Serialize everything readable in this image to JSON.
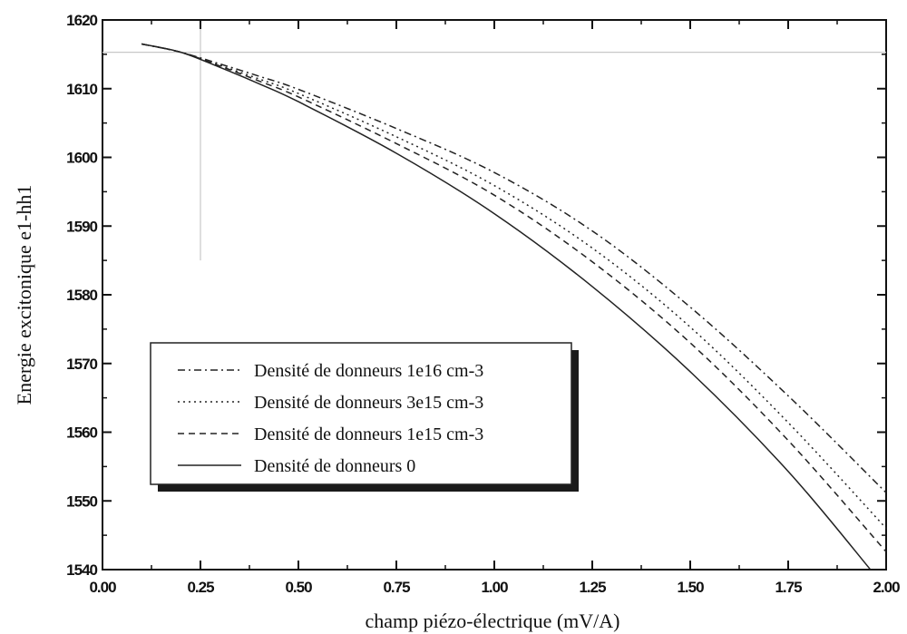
{
  "chart_data": {
    "type": "line",
    "title": "",
    "xlabel": "champ piézo-électrique (mV/A)",
    "ylabel": "Energie excitonique e1-hh1",
    "xlim": [
      0.0,
      2.0
    ],
    "ylim": [
      1540,
      1620
    ],
    "x_ticks": [
      "0.00",
      "0.25",
      "0.50",
      "0.75",
      "1.00",
      "1.25",
      "1.50",
      "1.75",
      "2.00"
    ],
    "y_ticks": [
      "1540",
      "1550",
      "1560",
      "1570",
      "1580",
      "1590",
      "1600",
      "1610",
      "1620"
    ],
    "grid": false,
    "legend_position": "lower-left",
    "reference_lines": {
      "y": 1615.3,
      "x": 0.25
    },
    "series": [
      {
        "name": "Densité de donneurs 1e16 cm-3",
        "dash": "dash-dot",
        "x": [
          0.1,
          0.2,
          0.3,
          0.4,
          0.5,
          0.75,
          1.0,
          1.25,
          1.5,
          1.75,
          2.0
        ],
        "y": [
          1616.5,
          1615.3,
          1613.6,
          1611.8,
          1609.9,
          1604.2,
          1597.8,
          1589.3,
          1578.2,
          1565.3,
          1551.2
        ]
      },
      {
        "name": "Densité de donneurs 3e15 cm-3",
        "dash": "dotted",
        "x": [
          0.1,
          0.2,
          0.3,
          0.4,
          0.5,
          0.75,
          1.0,
          1.25,
          1.5,
          1.75,
          2.0
        ],
        "y": [
          1616.5,
          1615.3,
          1613.4,
          1611.4,
          1609.3,
          1603.0,
          1595.9,
          1586.8,
          1575.3,
          1561.4,
          1546.0
        ]
      },
      {
        "name": "Densité de donneurs 1e15 cm-3",
        "dash": "dashed",
        "x": [
          0.1,
          0.2,
          0.3,
          0.4,
          0.5,
          0.75,
          1.0,
          1.25,
          1.5,
          1.75,
          2.0
        ],
        "y": [
          1616.5,
          1615.3,
          1613.3,
          1611.1,
          1608.8,
          1602.0,
          1594.5,
          1584.8,
          1573.0,
          1558.8,
          1542.6
        ]
      },
      {
        "name": "Densité de donneurs 0",
        "dash": "solid",
        "x": [
          0.1,
          0.2,
          0.3,
          0.4,
          0.5,
          0.75,
          1.0,
          1.25,
          1.5,
          1.75,
          1.96
        ],
        "y": [
          1616.5,
          1615.3,
          1613.1,
          1610.7,
          1608.1,
          1600.6,
          1591.8,
          1581.2,
          1568.8,
          1554.3,
          1540.0
        ]
      }
    ]
  }
}
